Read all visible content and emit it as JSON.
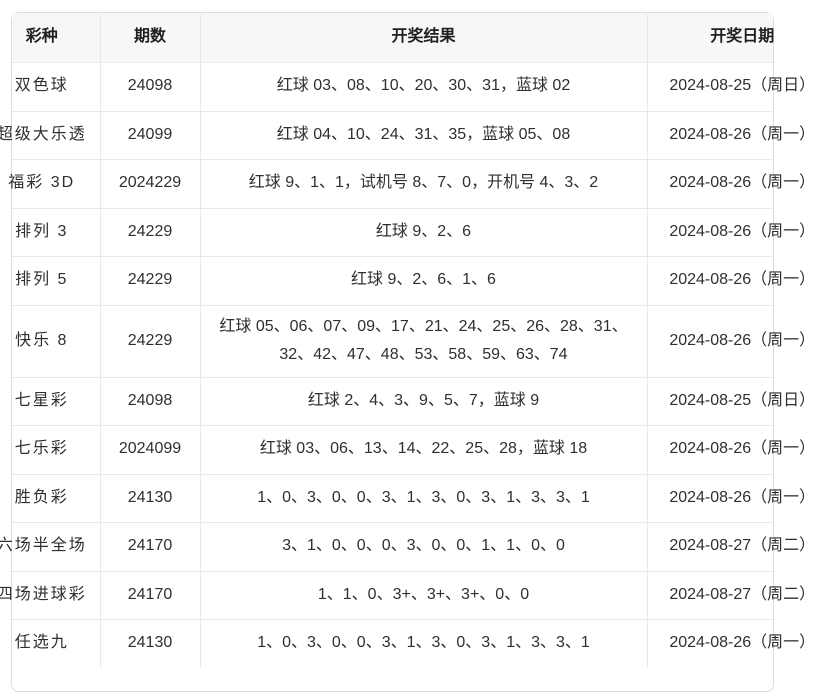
{
  "table": {
    "columns": [
      {
        "label": "彩种"
      },
      {
        "label": "期数"
      },
      {
        "label": "开奖结果"
      },
      {
        "label": "开奖日期"
      }
    ],
    "rows": [
      {
        "type": "双色球",
        "issue": "24098",
        "result": "红球 03、08、10、20、30、31，蓝球 02",
        "date": "2024-08-25（周日）"
      },
      {
        "type": "超级大乐透",
        "issue": "24099",
        "result": "红球 04、10、24、31、35，蓝球 05、08",
        "date": "2024-08-26（周一）"
      },
      {
        "type": "福彩 3D",
        "issue": "2024229",
        "result": "红球 9、1、1，试机号 8、7、0，开机号 4、3、2",
        "date": "2024-08-26（周一）"
      },
      {
        "type": "排列 3",
        "issue": "24229",
        "result": "红球 9、2、6",
        "date": "2024-08-26（周一）"
      },
      {
        "type": "排列 5",
        "issue": "24229",
        "result": "红球 9、2、6、1、6",
        "date": "2024-08-26（周一）"
      },
      {
        "type": "快乐 8",
        "issue": "24229",
        "result": "红球 05、06、07、09、17、21、24、25、26、28、31、32、42、47、48、53、58、59、63、74",
        "date": "2024-08-26（周一）"
      },
      {
        "type": "七星彩",
        "issue": "24098",
        "result": "红球 2、4、3、9、5、7，蓝球 9",
        "date": "2024-08-25（周日）"
      },
      {
        "type": "七乐彩",
        "issue": "2024099",
        "result": "红球 03、06、13、14、22、25、28，蓝球 18",
        "date": "2024-08-26（周一）"
      },
      {
        "type": "胜负彩",
        "issue": "24130",
        "result": "1、0、3、0、0、3、1、3、0、3、1、3、3、1",
        "date": "2024-08-26（周一）"
      },
      {
        "type": "六场半全场",
        "issue": "24170",
        "result": "3、1、0、0、0、3、0、0、1、1、0、0",
        "date": "2024-08-27（周二）"
      },
      {
        "type": "四场进球彩",
        "issue": "24170",
        "result": "1、1、0、3+、3+、3+、0、0",
        "date": "2024-08-27（周二）"
      },
      {
        "type": "任选九",
        "issue": "24130",
        "result": "1、0、3、0、0、3、1、3、0、3、1、3、3、1",
        "date": "2024-08-26（周一）"
      }
    ],
    "colors": {
      "header_bg": "#f7f7f8",
      "border": "#e9e9e9",
      "card_border": "#dcdcdc",
      "text": "#2f2f2f"
    }
  }
}
